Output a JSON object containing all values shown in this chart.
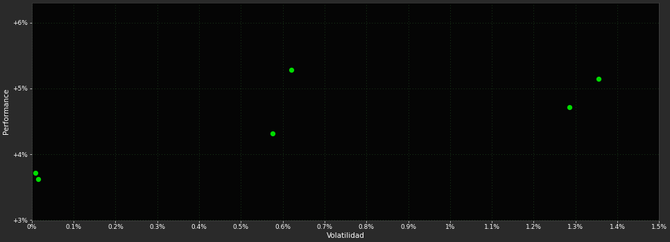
{
  "background_color": "#2a2a2a",
  "plot_bg_color": "#050505",
  "grid_color": "#1a3a1a",
  "text_color": "#ffffff",
  "point_color": "#00dd00",
  "xlabel": "Volatilidad",
  "ylabel": "Performance",
  "xlim": [
    0.0,
    0.015
  ],
  "ylim": [
    0.03,
    0.063
  ],
  "xticks": [
    0.0,
    0.001,
    0.002,
    0.003,
    0.004,
    0.005,
    0.006,
    0.007,
    0.008,
    0.009,
    0.01,
    0.011,
    0.012,
    0.013,
    0.014,
    0.015
  ],
  "yticks": [
    0.03,
    0.04,
    0.05,
    0.06
  ],
  "ytick_labels": [
    "+3%",
    "+4%",
    "+5%",
    "+6%"
  ],
  "xtick_labels": [
    "0%",
    "0.1%",
    "0.2%",
    "0.3%",
    "0.4%",
    "0.5%",
    "0.6%",
    "0.7%",
    "0.8%",
    "0.9%",
    "1%",
    "1.1%",
    "1.2%",
    "1.3%",
    "1.4%",
    "1.5%"
  ],
  "scatter_x": [
    8e-05,
    0.00015,
    0.00575,
    0.0062,
    0.01285,
    0.01355
  ],
  "scatter_y": [
    0.0372,
    0.0362,
    0.0432,
    0.0528,
    0.0472,
    0.0515
  ],
  "marker_size": 18
}
